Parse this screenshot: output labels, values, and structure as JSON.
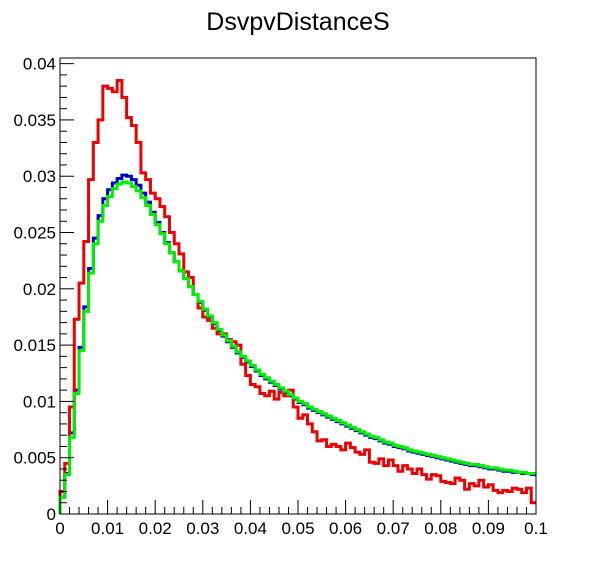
{
  "chart_data": {
    "type": "line",
    "style": "step-histogram",
    "title": "DsvpvDistanceS",
    "xlabel": "",
    "ylabel": "",
    "xlim": [
      0,
      0.1
    ],
    "ylim": [
      0,
      0.0405
    ],
    "x_ticks": [
      "0",
      "0.01",
      "0.02",
      "0.03",
      "0.04",
      "0.05",
      "0.06",
      "0.07",
      "0.08",
      "0.09",
      "0.1"
    ],
    "y_ticks": [
      "0",
      "0.005",
      "0.01",
      "0.015",
      "0.02",
      "0.025",
      "0.03",
      "0.035",
      "0.04"
    ],
    "grid": false,
    "legend": "none",
    "bin_width": 0.001,
    "series": [
      {
        "color": "#0000cc",
        "values": [
          0.0015,
          0.0036,
          0.0072,
          0.011,
          0.0148,
          0.0184,
          0.0218,
          0.0245,
          0.0265,
          0.028,
          0.0288,
          0.0294,
          0.0298,
          0.0301,
          0.03,
          0.0297,
          0.0292,
          0.0285,
          0.0277,
          0.0268,
          0.0259,
          0.025,
          0.0241,
          0.0232,
          0.0224,
          0.0216,
          0.0209,
          0.0202,
          0.0195,
          0.0188,
          0.0181,
          0.0175,
          0.0169,
          0.0163,
          0.0158,
          0.0153,
          0.0148,
          0.0143,
          0.0139,
          0.0135,
          0.0131,
          0.0127,
          0.0123,
          0.012,
          0.0117,
          0.0114,
          0.0111,
          0.0108,
          0.0105,
          0.0102,
          0.0099,
          0.0097,
          0.0094,
          0.0092,
          0.009,
          0.0088,
          0.0086,
          0.0084,
          0.0082,
          0.008,
          0.0078,
          0.0076,
          0.0074,
          0.0072,
          0.007,
          0.0068,
          0.0067,
          0.0065,
          0.0063,
          0.0062,
          0.006,
          0.0059,
          0.0058,
          0.0056,
          0.0055,
          0.0054,
          0.0053,
          0.0052,
          0.0051,
          0.005,
          0.0049,
          0.0048,
          0.0047,
          0.0046,
          0.0045,
          0.0044,
          0.0043,
          0.0043,
          0.0042,
          0.0041,
          0.004,
          0.004,
          0.0039,
          0.0038,
          0.0038,
          0.0037,
          0.0037,
          0.0036,
          0.0036,
          0.0035
        ]
      },
      {
        "color": "#ee0000",
        "values": [
          0.002,
          0.0045,
          0.0095,
          0.0173,
          0.0205,
          0.0242,
          0.0297,
          0.033,
          0.035,
          0.038,
          0.0378,
          0.0375,
          0.0385,
          0.037,
          0.0352,
          0.0345,
          0.033,
          0.0303,
          0.0297,
          0.0285,
          0.028,
          0.0273,
          0.0264,
          0.025,
          0.024,
          0.0231,
          0.0215,
          0.021,
          0.0195,
          0.0183,
          0.0175,
          0.0172,
          0.0165,
          0.016,
          0.016,
          0.0155,
          0.0153,
          0.015,
          0.0133,
          0.0123,
          0.0115,
          0.0113,
          0.0107,
          0.0105,
          0.0109,
          0.0102,
          0.0108,
          0.0105,
          0.011,
          0.0095,
          0.0085,
          0.0088,
          0.008,
          0.0073,
          0.0065,
          0.0066,
          0.006,
          0.0062,
          0.006,
          0.0057,
          0.0063,
          0.0059,
          0.0055,
          0.0053,
          0.0057,
          0.0046,
          0.0045,
          0.0049,
          0.0043,
          0.0048,
          0.0043,
          0.0038,
          0.0043,
          0.004,
          0.0036,
          0.004,
          0.0035,
          0.0031,
          0.0035,
          0.0034,
          0.0029,
          0.0028,
          0.0027,
          0.0032,
          0.003,
          0.0022,
          0.0027,
          0.0025,
          0.003,
          0.0024,
          0.0026,
          0.0021,
          0.0019,
          0.0021,
          0.002,
          0.0023,
          0.0022,
          0.0019,
          0.0023,
          0.001
        ]
      },
      {
        "color": "#00ee00",
        "values": [
          0.0015,
          0.0035,
          0.0068,
          0.0107,
          0.0145,
          0.018,
          0.0214,
          0.024,
          0.026,
          0.0274,
          0.0282,
          0.0289,
          0.0293,
          0.0295,
          0.0294,
          0.0291,
          0.0287,
          0.0281,
          0.0274,
          0.0266,
          0.0257,
          0.0249,
          0.024,
          0.0232,
          0.0224,
          0.0216,
          0.0209,
          0.0202,
          0.0195,
          0.0189,
          0.0182,
          0.0176,
          0.017,
          0.0164,
          0.0159,
          0.0154,
          0.0149,
          0.0144,
          0.014,
          0.0136,
          0.0132,
          0.0128,
          0.0124,
          0.0121,
          0.0118,
          0.0115,
          0.0112,
          0.0109,
          0.0106,
          0.0103,
          0.01,
          0.0098,
          0.0095,
          0.0093,
          0.0091,
          0.0089,
          0.0087,
          0.0085,
          0.0083,
          0.0081,
          0.0079,
          0.0077,
          0.0075,
          0.0073,
          0.0071,
          0.0069,
          0.0068,
          0.0066,
          0.0064,
          0.0063,
          0.0061,
          0.006,
          0.0059,
          0.0057,
          0.0056,
          0.0055,
          0.0054,
          0.0053,
          0.0052,
          0.0051,
          0.005,
          0.0049,
          0.0048,
          0.0047,
          0.0046,
          0.0045,
          0.0044,
          0.0044,
          0.0043,
          0.0042,
          0.0041,
          0.0041,
          0.004,
          0.0039,
          0.0039,
          0.0038,
          0.0037,
          0.0037,
          0.0036,
          0.0036
        ]
      }
    ]
  }
}
